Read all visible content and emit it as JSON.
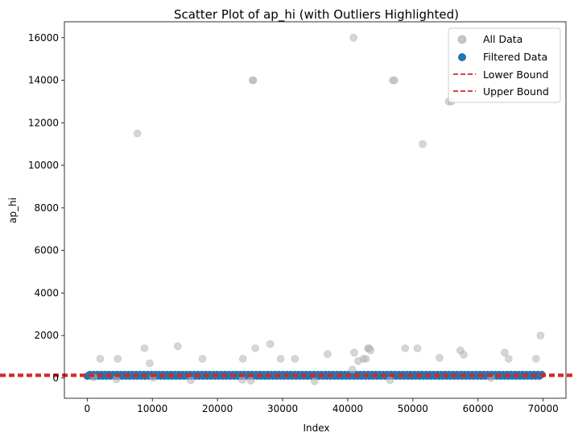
{
  "chart_data": {
    "type": "scatter",
    "title": "Scatter Plot of ap_hi (with Outliers Highlighted)",
    "xlabel": "Index",
    "ylabel": "ap_hi",
    "xlim": [
      -3500,
      73500
    ],
    "ylim": [
      -950,
      16750
    ],
    "xticks": [
      0,
      10000,
      20000,
      30000,
      40000,
      50000,
      60000,
      70000
    ],
    "yticks": [
      0,
      2000,
      4000,
      6000,
      8000,
      10000,
      12000,
      14000,
      16000
    ],
    "grid": false,
    "legend_position": "upper-right",
    "colors": {
      "all_data": "#a0a0a0",
      "filtered_data": "#1f77b4",
      "bounds": "#d62728"
    },
    "legend": [
      {
        "label": "All Data",
        "kind": "marker-gray"
      },
      {
        "label": "Filtered Data",
        "kind": "marker-blue"
      },
      {
        "label": "Lower Bound",
        "kind": "dashed-red"
      },
      {
        "label": "Upper Bound",
        "kind": "dashed-red"
      }
    ],
    "bounds": {
      "lower": 90,
      "upper": 170
    },
    "filtered_range": {
      "x": [
        0,
        70000
      ],
      "y": [
        90,
        170
      ]
    },
    "series": [
      {
        "name": "All Data",
        "points": [
          [
            7700,
            11500
          ],
          [
            25400,
            14000
          ],
          [
            25500,
            14000
          ],
          [
            40900,
            16000
          ],
          [
            46900,
            14000
          ],
          [
            47200,
            14000
          ],
          [
            51500,
            11000
          ],
          [
            55500,
            13000
          ],
          [
            55900,
            13000
          ],
          [
            2000,
            907
          ],
          [
            4700,
            907
          ],
          [
            8800,
            1400
          ],
          [
            9600,
            700
          ],
          [
            13900,
            1500
          ],
          [
            17700,
            907
          ],
          [
            23900,
            907
          ],
          [
            25800,
            1400
          ],
          [
            28100,
            1600
          ],
          [
            29700,
            907
          ],
          [
            31900,
            907
          ],
          [
            36900,
            1130
          ],
          [
            40700,
            400
          ],
          [
            41000,
            1200
          ],
          [
            41600,
            800
          ],
          [
            42400,
            907
          ],
          [
            42800,
            907
          ],
          [
            43100,
            1400
          ],
          [
            43300,
            1400
          ],
          [
            43500,
            1300
          ],
          [
            48800,
            1400
          ],
          [
            50700,
            1400
          ],
          [
            54100,
            950
          ],
          [
            57300,
            1300
          ],
          [
            57800,
            1100
          ],
          [
            64100,
            1200
          ],
          [
            64700,
            907
          ],
          [
            68900,
            907
          ],
          [
            69600,
            2000
          ],
          [
            1000,
            40
          ],
          [
            4500,
            -50
          ],
          [
            10100,
            20
          ],
          [
            15900,
            -100
          ],
          [
            23800,
            -80
          ],
          [
            25100,
            -120
          ],
          [
            34900,
            -150
          ],
          [
            46500,
            -100
          ],
          [
            62000,
            10
          ]
        ]
      },
      {
        "name": "Filtered Data",
        "points": "dense band of ~68,000 points between x 0–70000 with ap_hi 90–170"
      }
    ]
  }
}
